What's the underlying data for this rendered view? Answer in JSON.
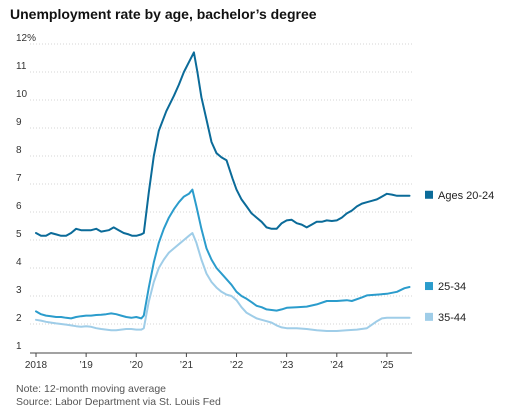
{
  "title": "Unemployment rate by age, bachelor’s degree",
  "note": "Note: 12-month moving average",
  "source": "Source: Labor Department via St. Louis Fed",
  "chart_data": {
    "type": "line",
    "title": "Unemployment rate by age, bachelor’s degree",
    "ylim": [
      1,
      12
    ],
    "xlim": [
      2018.0,
      2025.5
    ],
    "y_ticks": [
      1,
      2,
      3,
      4,
      5,
      6,
      7,
      8,
      9,
      10,
      11,
      12
    ],
    "y_tick_labels": [
      "1",
      "2",
      "3",
      "4",
      "5",
      "6",
      "7",
      "8",
      "9",
      "10",
      "11",
      "12%"
    ],
    "x_ticks": [
      2018,
      2019,
      2020,
      2021,
      2022,
      2023,
      2024,
      2025
    ],
    "x_tick_labels": [
      "2018",
      "’19",
      "’20",
      "’21",
      "’22",
      "’23",
      "’24",
      "’25"
    ],
    "grid": "horizontal",
    "legend": "right, inline labels",
    "series": [
      {
        "name": "Ages 20-24",
        "color": "#0b6b99",
        "points": [
          [
            2018.0,
            5.25
          ],
          [
            2018.1,
            5.15
          ],
          [
            2018.2,
            5.15
          ],
          [
            2018.3,
            5.25
          ],
          [
            2018.4,
            5.2
          ],
          [
            2018.5,
            5.15
          ],
          [
            2018.6,
            5.15
          ],
          [
            2018.7,
            5.25
          ],
          [
            2018.8,
            5.4
          ],
          [
            2018.9,
            5.35
          ],
          [
            2019.0,
            5.35
          ],
          [
            2019.1,
            5.35
          ],
          [
            2019.2,
            5.4
          ],
          [
            2019.3,
            5.3
          ],
          [
            2019.45,
            5.35
          ],
          [
            2019.55,
            5.45
          ],
          [
            2019.65,
            5.35
          ],
          [
            2019.75,
            5.25
          ],
          [
            2019.85,
            5.2
          ],
          [
            2019.92,
            5.15
          ],
          [
            2020.0,
            5.15
          ],
          [
            2020.1,
            5.2
          ],
          [
            2020.15,
            5.25
          ],
          [
            2020.25,
            6.7
          ],
          [
            2020.35,
            8.0
          ],
          [
            2020.45,
            8.9
          ],
          [
            2020.6,
            9.6
          ],
          [
            2020.75,
            10.15
          ],
          [
            2020.85,
            10.55
          ],
          [
            2020.95,
            11.0
          ],
          [
            2021.05,
            11.35
          ],
          [
            2021.15,
            11.7
          ],
          [
            2021.22,
            11.0
          ],
          [
            2021.3,
            10.1
          ],
          [
            2021.4,
            9.3
          ],
          [
            2021.5,
            8.5
          ],
          [
            2021.6,
            8.1
          ],
          [
            2021.7,
            7.95
          ],
          [
            2021.8,
            7.85
          ],
          [
            2021.92,
            7.2
          ],
          [
            2022.0,
            6.8
          ],
          [
            2022.1,
            6.45
          ],
          [
            2022.2,
            6.2
          ],
          [
            2022.3,
            5.95
          ],
          [
            2022.4,
            5.8
          ],
          [
            2022.5,
            5.65
          ],
          [
            2022.6,
            5.45
          ],
          [
            2022.7,
            5.4
          ],
          [
            2022.8,
            5.4
          ],
          [
            2022.9,
            5.6
          ],
          [
            2023.0,
            5.7
          ],
          [
            2023.1,
            5.72
          ],
          [
            2023.2,
            5.6
          ],
          [
            2023.3,
            5.55
          ],
          [
            2023.4,
            5.45
          ],
          [
            2023.5,
            5.55
          ],
          [
            2023.6,
            5.65
          ],
          [
            2023.7,
            5.65
          ],
          [
            2023.8,
            5.7
          ],
          [
            2023.9,
            5.68
          ],
          [
            2024.0,
            5.7
          ],
          [
            2024.1,
            5.8
          ],
          [
            2024.2,
            5.95
          ],
          [
            2024.3,
            6.05
          ],
          [
            2024.4,
            6.2
          ],
          [
            2024.5,
            6.3
          ],
          [
            2024.6,
            6.35
          ],
          [
            2024.7,
            6.4
          ],
          [
            2024.8,
            6.45
          ],
          [
            2024.9,
            6.55
          ],
          [
            2025.0,
            6.65
          ],
          [
            2025.1,
            6.62
          ],
          [
            2025.2,
            6.58
          ],
          [
            2025.45,
            6.58
          ]
        ]
      },
      {
        "name": "25-34",
        "color": "#2b9ccc",
        "points": [
          [
            2018.0,
            2.45
          ],
          [
            2018.1,
            2.35
          ],
          [
            2018.2,
            2.3
          ],
          [
            2018.3,
            2.28
          ],
          [
            2018.4,
            2.25
          ],
          [
            2018.5,
            2.25
          ],
          [
            2018.6,
            2.22
          ],
          [
            2018.7,
            2.2
          ],
          [
            2018.8,
            2.25
          ],
          [
            2018.9,
            2.28
          ],
          [
            2019.0,
            2.3
          ],
          [
            2019.1,
            2.3
          ],
          [
            2019.2,
            2.32
          ],
          [
            2019.3,
            2.33
          ],
          [
            2019.4,
            2.35
          ],
          [
            2019.5,
            2.38
          ],
          [
            2019.6,
            2.35
          ],
          [
            2019.7,
            2.3
          ],
          [
            2019.8,
            2.25
          ],
          [
            2019.9,
            2.22
          ],
          [
            2020.0,
            2.25
          ],
          [
            2020.1,
            2.2
          ],
          [
            2020.15,
            2.3
          ],
          [
            2020.25,
            3.3
          ],
          [
            2020.35,
            4.2
          ],
          [
            2020.45,
            4.9
          ],
          [
            2020.55,
            5.4
          ],
          [
            2020.65,
            5.8
          ],
          [
            2020.75,
            6.1
          ],
          [
            2020.85,
            6.35
          ],
          [
            2020.95,
            6.55
          ],
          [
            2021.05,
            6.65
          ],
          [
            2021.12,
            6.8
          ],
          [
            2021.2,
            6.2
          ],
          [
            2021.3,
            5.4
          ],
          [
            2021.4,
            4.7
          ],
          [
            2021.5,
            4.3
          ],
          [
            2021.6,
            4.0
          ],
          [
            2021.7,
            3.8
          ],
          [
            2021.8,
            3.6
          ],
          [
            2021.9,
            3.4
          ],
          [
            2022.0,
            3.15
          ],
          [
            2022.1,
            3.0
          ],
          [
            2022.2,
            2.9
          ],
          [
            2022.3,
            2.78
          ],
          [
            2022.4,
            2.65
          ],
          [
            2022.5,
            2.6
          ],
          [
            2022.6,
            2.52
          ],
          [
            2022.7,
            2.5
          ],
          [
            2022.8,
            2.48
          ],
          [
            2022.9,
            2.52
          ],
          [
            2023.0,
            2.58
          ],
          [
            2023.2,
            2.6
          ],
          [
            2023.4,
            2.62
          ],
          [
            2023.6,
            2.7
          ],
          [
            2023.8,
            2.82
          ],
          [
            2024.0,
            2.82
          ],
          [
            2024.2,
            2.85
          ],
          [
            2024.3,
            2.82
          ],
          [
            2024.5,
            2.95
          ],
          [
            2024.6,
            3.02
          ],
          [
            2024.8,
            3.05
          ],
          [
            2025.0,
            3.08
          ],
          [
            2025.2,
            3.15
          ],
          [
            2025.35,
            3.28
          ],
          [
            2025.45,
            3.32
          ]
        ]
      },
      {
        "name": "35-44",
        "color": "#9fcde8",
        "points": [
          [
            2018.0,
            2.15
          ],
          [
            2018.1,
            2.12
          ],
          [
            2018.2,
            2.08
          ],
          [
            2018.3,
            2.05
          ],
          [
            2018.4,
            2.02
          ],
          [
            2018.5,
            2.0
          ],
          [
            2018.6,
            1.98
          ],
          [
            2018.7,
            1.95
          ],
          [
            2018.8,
            1.92
          ],
          [
            2018.9,
            1.9
          ],
          [
            2019.0,
            1.92
          ],
          [
            2019.1,
            1.9
          ],
          [
            2019.2,
            1.85
          ],
          [
            2019.3,
            1.82
          ],
          [
            2019.4,
            1.8
          ],
          [
            2019.5,
            1.78
          ],
          [
            2019.6,
            1.78
          ],
          [
            2019.7,
            1.8
          ],
          [
            2019.8,
            1.82
          ],
          [
            2019.9,
            1.82
          ],
          [
            2020.0,
            1.8
          ],
          [
            2020.1,
            1.8
          ],
          [
            2020.15,
            1.85
          ],
          [
            2020.25,
            2.8
          ],
          [
            2020.35,
            3.5
          ],
          [
            2020.45,
            4.0
          ],
          [
            2020.55,
            4.3
          ],
          [
            2020.65,
            4.55
          ],
          [
            2020.75,
            4.7
          ],
          [
            2020.85,
            4.85
          ],
          [
            2020.95,
            5.0
          ],
          [
            2021.05,
            5.15
          ],
          [
            2021.12,
            5.25
          ],
          [
            2021.2,
            4.9
          ],
          [
            2021.3,
            4.3
          ],
          [
            2021.4,
            3.8
          ],
          [
            2021.5,
            3.5
          ],
          [
            2021.6,
            3.3
          ],
          [
            2021.7,
            3.15
          ],
          [
            2021.8,
            3.05
          ],
          [
            2021.9,
            3.0
          ],
          [
            2022.0,
            2.85
          ],
          [
            2022.1,
            2.6
          ],
          [
            2022.2,
            2.4
          ],
          [
            2022.3,
            2.3
          ],
          [
            2022.4,
            2.2
          ],
          [
            2022.5,
            2.15
          ],
          [
            2022.6,
            2.1
          ],
          [
            2022.7,
            2.05
          ],
          [
            2022.8,
            1.95
          ],
          [
            2022.9,
            1.88
          ],
          [
            2023.0,
            1.85
          ],
          [
            2023.2,
            1.85
          ],
          [
            2023.4,
            1.82
          ],
          [
            2023.6,
            1.78
          ],
          [
            2023.8,
            1.75
          ],
          [
            2024.0,
            1.75
          ],
          [
            2024.2,
            1.78
          ],
          [
            2024.4,
            1.8
          ],
          [
            2024.6,
            1.85
          ],
          [
            2024.8,
            2.1
          ],
          [
            2024.9,
            2.2
          ],
          [
            2025.0,
            2.22
          ],
          [
            2025.2,
            2.22
          ],
          [
            2025.45,
            2.22
          ]
        ]
      }
    ]
  }
}
